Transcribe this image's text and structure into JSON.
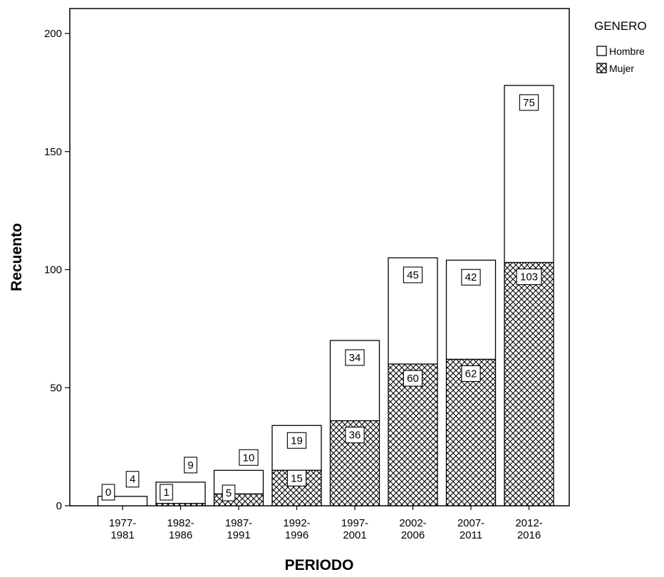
{
  "chart_data": {
    "type": "bar",
    "stacked": true,
    "xlabel": "PERIODO",
    "ylabel": "Recuento",
    "ylim": [
      0,
      210
    ],
    "yticks": [
      0,
      50,
      100,
      150,
      200
    ],
    "grid": false,
    "legend_position": "top-right",
    "legend_title": "GENERO",
    "categories": [
      [
        "1977-",
        "1981"
      ],
      [
        "1982-",
        "1986"
      ],
      [
        "1987-",
        "1991"
      ],
      [
        "1992-",
        "1996"
      ],
      [
        "1997-",
        "2001"
      ],
      [
        "2002-",
        "2006"
      ],
      [
        "2007-",
        "2011"
      ],
      [
        "2012-",
        "2016"
      ]
    ],
    "series": [
      {
        "name": "Mujer",
        "pattern": "crosshatch",
        "values": [
          0,
          1,
          5,
          15,
          36,
          60,
          62,
          103
        ]
      },
      {
        "name": "Hombre",
        "pattern": "solid-white",
        "values": [
          4,
          9,
          10,
          19,
          34,
          45,
          42,
          75
        ]
      }
    ],
    "colors": {
      "fill_hombre": "#ffffff",
      "hatch_mujer": "#000000",
      "stroke": "#000000"
    }
  }
}
